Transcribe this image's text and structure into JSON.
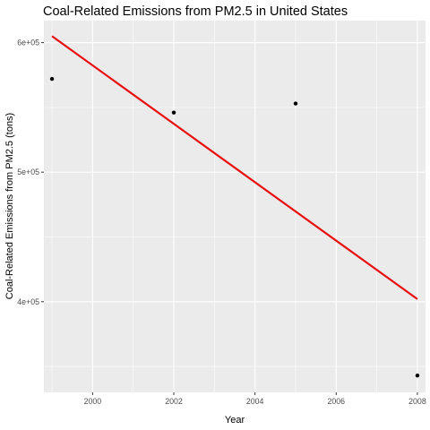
{
  "chart_data": {
    "type": "scatter",
    "title": "Coal-Related Emissions from PM2.5 in United States",
    "xlabel": "Year",
    "ylabel": "Coal-Related Emissions from PM2.5 (tons)",
    "xlim": [
      1998.8,
      2008.2
    ],
    "ylim": [
      330000,
      617000
    ],
    "x_ticks": [
      2000,
      2002,
      2004,
      2006,
      2008
    ],
    "x_tick_labels": [
      "2000",
      "2002",
      "2004",
      "2006",
      "2008"
    ],
    "y_ticks": [
      400000,
      500000,
      600000
    ],
    "y_tick_labels": [
      "4e+05",
      "5e+05",
      "6e+05"
    ],
    "grid": true,
    "legend": "none",
    "series": [
      {
        "type": "scatter",
        "color": "#000000",
        "points": [
          {
            "x": 1999,
            "y": 572000
          },
          {
            "x": 2002,
            "y": 546000
          },
          {
            "x": 2005,
            "y": 553000
          },
          {
            "x": 2008,
            "y": 343000
          }
        ]
      },
      {
        "type": "line",
        "color": "#e8100f",
        "points": [
          {
            "x": 1999,
            "y": 605000
          },
          {
            "x": 2008,
            "y": 402000
          }
        ]
      }
    ]
  }
}
